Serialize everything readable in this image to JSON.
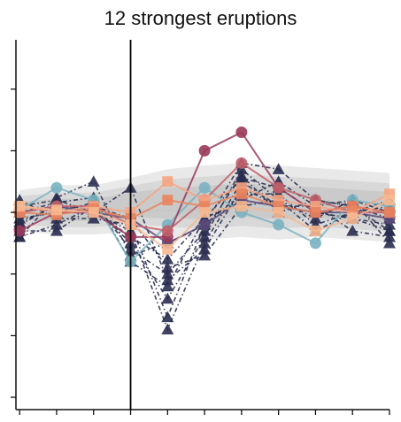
{
  "chart_data": {
    "type": "line",
    "title": "12 strongest eruptions",
    "xlabel": "",
    "ylabel": "",
    "x": [
      -3,
      -2,
      -1,
      0,
      1,
      2,
      3,
      4,
      5,
      6,
      7
    ],
    "xlim": [
      -3.1,
      7
    ],
    "ylim": [
      -1.6,
      1.4
    ],
    "event_line_x": 0,
    "legend": "none",
    "grid": false,
    "envelope": {
      "lower": [
        -0.15,
        -0.18,
        -0.18,
        -0.16,
        -0.2,
        -0.22,
        -0.2,
        -0.22,
        -0.2,
        -0.22,
        -0.24
      ],
      "upper": [
        0.18,
        0.22,
        0.22,
        0.28,
        0.35,
        0.38,
        0.4,
        0.38,
        0.36,
        0.34,
        0.32
      ]
    },
    "mean": [
      0.02,
      0.03,
      0.04,
      0.0,
      0.02,
      0.03,
      0.03,
      0.02,
      0.02,
      0.01,
      0.0
    ],
    "series": [
      {
        "marker": "triangle",
        "color": "#2a2d4f",
        "values": [
          -0.2,
          0.12,
          0.25,
          -0.35,
          -0.25,
          -0.1,
          0.4,
          0.35,
          0.1,
          0.05,
          -0.15
        ]
      },
      {
        "marker": "triangle",
        "color": "#2a2d4f",
        "values": [
          -0.1,
          0.06,
          0.02,
          -0.2,
          -0.38,
          -0.05,
          0.28,
          0.2,
          0.0,
          -0.05,
          -0.1
        ]
      },
      {
        "marker": "triangle",
        "color": "#2a2d4f",
        "values": [
          -0.15,
          -0.15,
          0.05,
          -0.25,
          -0.7,
          -0.2,
          0.35,
          0.1,
          -0.05,
          0.1,
          0.0
        ]
      },
      {
        "marker": "triangle",
        "color": "#2a2d4f",
        "values": [
          0.05,
          0.1,
          0.0,
          0.2,
          -0.55,
          -0.3,
          0.2,
          0.05,
          0.05,
          -0.15,
          -0.2
        ]
      },
      {
        "marker": "triangle",
        "color": "#2a2d4f",
        "values": [
          -0.05,
          0.0,
          0.08,
          -0.3,
          -0.5,
          -0.15,
          0.3,
          0.0,
          0.1,
          0.05,
          -0.05
        ]
      },
      {
        "marker": "triangle",
        "color": "#2a2d4f",
        "values": [
          0.1,
          -0.05,
          -0.05,
          -0.1,
          -0.85,
          -0.1,
          0.15,
          0.15,
          -0.1,
          0.0,
          0.05
        ]
      },
      {
        "marker": "triangle",
        "color": "#2a2d4f",
        "values": [
          -0.08,
          0.05,
          0.0,
          -0.15,
          -0.95,
          -0.25,
          0.25,
          0.05,
          0.0,
          -0.05,
          -0.15
        ]
      },
      {
        "marker": "triangle",
        "color": "#2a2d4f",
        "values": [
          0.0,
          0.08,
          0.12,
          -0.4,
          -0.6,
          -0.05,
          0.1,
          0.25,
          0.05,
          0.1,
          -0.25
        ]
      },
      {
        "marker": "triangle",
        "color": "#2a2d4f",
        "values": [
          -0.2,
          -0.1,
          0.05,
          -0.05,
          -0.45,
          -0.35,
          0.05,
          0.1,
          -0.15,
          0.0,
          0.1
        ]
      },
      {
        "marker": "circle",
        "color": "#5a4a7a",
        "values": [
          0.0,
          0.05,
          0.0,
          -0.05,
          -0.25,
          -0.1,
          0.1,
          0.05,
          0.0,
          0.0,
          -0.05
        ]
      },
      {
        "marker": "circle",
        "color": "#7ab3c0",
        "values": [
          0.02,
          0.2,
          0.1,
          -0.4,
          -0.1,
          0.2,
          0.0,
          -0.1,
          -0.25,
          0.1,
          0.05
        ]
      },
      {
        "marker": "circle",
        "color": "#9a3a5a",
        "values": [
          -0.15,
          0.0,
          0.0,
          -0.2,
          -0.2,
          0.5,
          0.65,
          0.2,
          0.0,
          0.05,
          0.0
        ]
      },
      {
        "marker": "circle",
        "color": "#c0606a",
        "values": [
          0.0,
          0.05,
          0.05,
          -0.1,
          -0.15,
          0.1,
          0.4,
          0.2,
          0.1,
          0.0,
          0.0
        ]
      },
      {
        "marker": "square",
        "color": "#f4a582",
        "values": [
          0.05,
          0.0,
          0.05,
          0.0,
          0.25,
          0.1,
          0.2,
          0.1,
          0.05,
          0.0,
          0.15
        ]
      },
      {
        "marker": "square",
        "color": "#e8845e",
        "values": [
          0.0,
          -0.02,
          0.03,
          -0.05,
          0.1,
          0.05,
          0.15,
          0.05,
          0.0,
          0.05,
          0.0
        ]
      },
      {
        "marker": "square",
        "color": "#f7b991",
        "values": [
          0.05,
          0.02,
          0.0,
          -0.1,
          -0.3,
          0.0,
          0.05,
          0.0,
          -0.15,
          -0.05,
          0.1
        ]
      }
    ]
  }
}
